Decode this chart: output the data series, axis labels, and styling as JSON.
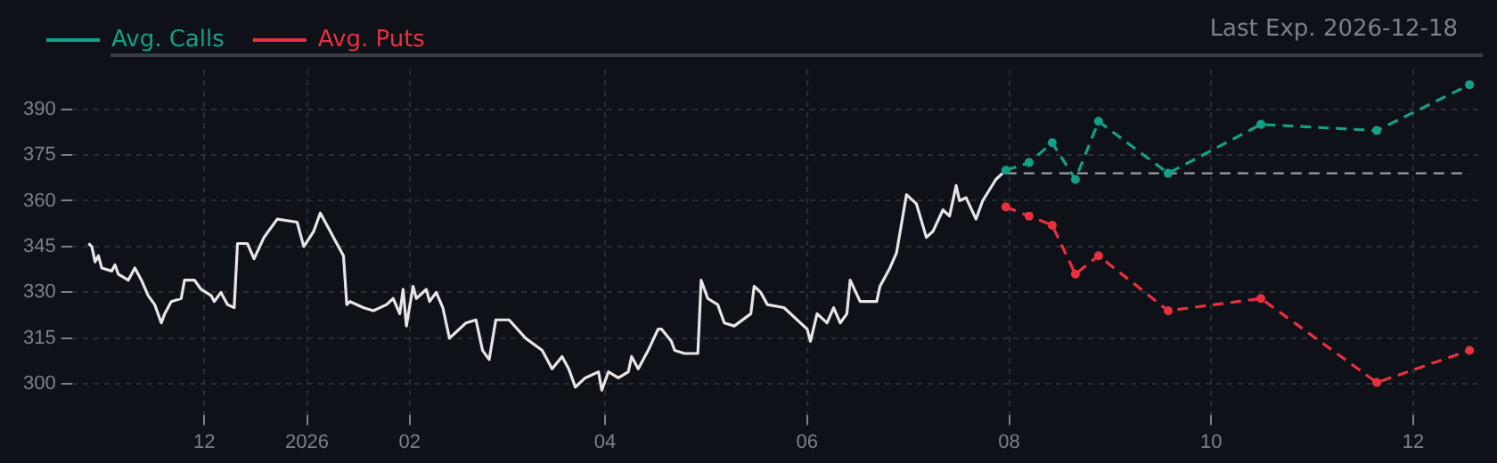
{
  "chart_data": {
    "type": "line",
    "annotations": [
      "Last Exp. 2026-12-18"
    ],
    "xlim": [
      "2025-10-22",
      "2026-12-22"
    ],
    "xticks": [
      {
        "value": "2025-12-01",
        "label": "12"
      },
      {
        "value": "2026-01-01",
        "label": "2026"
      },
      {
        "value": "2026-02-01",
        "label": "02"
      },
      {
        "value": "2026-04-01",
        "label": "04"
      },
      {
        "value": "2026-06-01",
        "label": "06"
      },
      {
        "value": "2026-08-01",
        "label": "08"
      },
      {
        "value": "2026-10-01",
        "label": "10"
      },
      {
        "value": "2026-12-01",
        "label": "12"
      }
    ],
    "ylim": [
      290,
      403
    ],
    "yticks": [
      300,
      315,
      330,
      345,
      360,
      375,
      390
    ],
    "grid": true,
    "legend": "top left",
    "ref_lines": [
      {
        "axis": "y",
        "value": 369,
        "color": "#9a9ea6",
        "line_style": "dashed"
      }
    ],
    "series": [
      {
        "color": "#e6e6e6",
        "marker": "none",
        "line_style": "solid",
        "x": [
          "2025-10-27",
          "2025-10-28",
          "2025-10-29",
          "2025-10-30",
          "2025-10-31",
          "2025-11-03",
          "2025-11-04",
          "2025-11-05",
          "2025-11-08",
          "2025-11-10",
          "2025-11-12",
          "2025-11-14",
          "2025-11-16",
          "2025-11-18",
          "2025-11-19",
          "2025-11-21",
          "2025-11-24",
          "2025-11-25",
          "2025-11-28",
          "2025-11-30",
          "2025-12-03",
          "2025-12-04",
          "2025-12-06",
          "2025-12-08",
          "2025-12-10",
          "2025-12-11",
          "2025-12-14",
          "2025-12-16",
          "2025-12-19",
          "2025-12-23",
          "2025-12-29",
          "2025-12-31",
          "2026-01-03",
          "2026-01-05",
          "2026-01-09",
          "2026-01-12",
          "2026-01-13",
          "2026-01-14",
          "2026-01-18",
          "2026-01-21",
          "2026-01-25",
          "2026-01-27",
          "2026-01-29",
          "2026-01-30",
          "2026-01-31",
          "2026-02-02",
          "2026-02-03",
          "2026-02-06",
          "2026-02-07",
          "2026-02-09",
          "2026-02-11",
          "2026-02-13",
          "2026-02-18",
          "2026-02-21",
          "2026-02-23",
          "2026-02-25",
          "2026-02-27",
          "2026-03-03",
          "2026-03-08",
          "2026-03-13",
          "2026-03-16",
          "2026-03-19",
          "2026-03-21",
          "2026-03-23",
          "2026-03-26",
          "2026-03-30",
          "2026-03-31",
          "2026-04-02",
          "2026-04-05",
          "2026-04-08",
          "2026-04-09",
          "2026-04-11",
          "2026-04-14",
          "2026-04-17",
          "2026-04-18",
          "2026-04-21",
          "2026-04-22",
          "2026-04-25",
          "2026-04-29",
          "2026-04-30",
          "2026-05-02",
          "2026-05-05",
          "2026-05-07",
          "2026-05-10",
          "2026-05-15",
          "2026-05-16",
          "2026-05-18",
          "2026-05-20",
          "2026-05-25",
          "2026-06-01",
          "2026-06-02",
          "2026-06-04",
          "2026-06-07",
          "2026-06-09",
          "2026-06-11",
          "2026-06-13",
          "2026-06-14",
          "2026-06-17",
          "2026-06-22",
          "2026-06-23",
          "2026-06-26",
          "2026-06-28",
          "2026-07-01",
          "2026-07-04",
          "2026-07-07",
          "2026-07-09",
          "2026-07-12",
          "2026-07-14",
          "2026-07-16",
          "2026-07-17",
          "2026-07-19",
          "2026-07-22",
          "2026-07-24",
          "2026-07-28",
          "2026-07-30"
        ],
        "values": [
          346,
          345,
          340,
          342,
          338,
          337,
          339,
          336,
          334,
          338,
          334,
          329,
          326,
          320,
          323,
          327,
          328,
          334,
          334,
          331,
          329,
          327,
          330,
          326,
          325,
          346,
          346,
          341,
          348,
          354,
          353,
          345,
          350,
          356,
          348,
          342,
          326,
          327,
          325,
          324,
          326,
          328,
          323,
          331,
          319,
          332,
          328,
          331,
          327,
          330,
          325,
          315,
          320,
          321,
          311,
          308,
          321,
          321,
          315,
          311,
          305,
          309,
          305,
          299,
          302,
          304,
          298,
          304,
          302,
          304,
          309,
          305,
          311,
          318,
          318,
          314,
          311,
          310,
          310,
          334,
          328,
          326,
          320,
          319,
          323,
          332,
          330,
          326,
          325,
          318,
          314,
          323,
          320,
          325,
          320,
          323,
          334,
          327,
          327,
          332,
          338,
          343,
          362,
          359,
          348,
          350,
          357,
          355,
          365,
          360,
          361,
          354,
          360,
          367,
          369
        ]
      },
      {
        "name": "Avg. Calls",
        "color": "#14a085",
        "marker": "circle",
        "line_style": "dashed",
        "x": [
          "2026-07-31",
          "2026-08-07",
          "2026-08-14",
          "2026-08-21",
          "2026-08-28",
          "2026-09-18",
          "2026-10-16",
          "2026-11-20",
          "2026-12-18"
        ],
        "values": [
          370,
          372.5,
          379,
          367,
          386,
          369,
          385,
          383,
          398
        ]
      },
      {
        "name": "Avg. Puts",
        "color": "#e8303f",
        "marker": "circle",
        "line_style": "dashed",
        "x": [
          "2026-07-31",
          "2026-08-07",
          "2026-08-14",
          "2026-08-21",
          "2026-08-28",
          "2026-09-18",
          "2026-10-16",
          "2026-11-20",
          "2026-12-18"
        ],
        "values": [
          358,
          355,
          352,
          336,
          342,
          324,
          328,
          300.5,
          311
        ]
      }
    ]
  }
}
